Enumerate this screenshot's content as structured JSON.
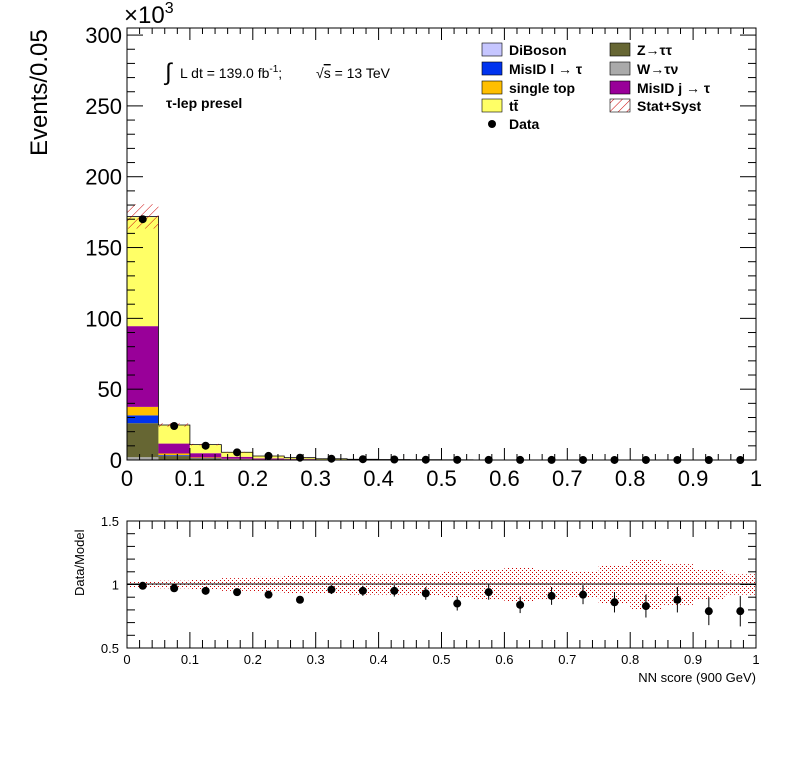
{
  "colors": {
    "DiBoson": "#c6c6ff",
    "MisID l to tau": "#0033ee",
    "single top": "#ffbf00",
    "ttbar": "#ffff66",
    "Z to tautau": "#666633",
    "W to taunu": "#aaaaaa",
    "MisID j to tau": "#990099",
    "data": "#000000",
    "band": "#cc0000"
  },
  "annotations": {
    "lumi_prefix": "L dt = 139.0 fb",
    "lumi_sup": "-1",
    "lumi_sep": ";  ",
    "sqrt_s": "s",
    "energy": " = 13 TeV",
    "region": "τ-lep presel"
  },
  "chart_data": [
    {
      "type": "bar",
      "stacked": true,
      "ylabel": "Events/0.05",
      "yscale_label": "×10",
      "yscale_exp": "3",
      "xlim": [
        0,
        1
      ],
      "ylim": [
        0,
        305
      ],
      "x_ticks": [
        "0",
        "0.1",
        "0.2",
        "0.3",
        "0.4",
        "0.5",
        "0.6",
        "0.7",
        "0.8",
        "0.9",
        "1"
      ],
      "y_ticks": [
        "0",
        "50",
        "100",
        "150",
        "200",
        "250",
        "300"
      ],
      "bin_edges": [
        0,
        0.05,
        0.1,
        0.15,
        0.2,
        0.25,
        0.3,
        0.35,
        0.4,
        0.45,
        0.5,
        0.55,
        0.6,
        0.65,
        0.7,
        0.75,
        0.8,
        0.85,
        0.9,
        0.95,
        1.0
      ],
      "legend_position": "top-right",
      "series": [
        {
          "name": "W→τν",
          "key": "W to taunu",
          "values": [
            2.0,
            0.3,
            0.15,
            0.08,
            0.05,
            0.03,
            0.02,
            0.01,
            0.01,
            0.005,
            0.004,
            0.003,
            0.002,
            0.002,
            0.001,
            0.001,
            0.001,
            0.001,
            0.0005,
            0.0005
          ]
        },
        {
          "name": "Z→ττ",
          "key": "Z to tautau",
          "values": [
            24.0,
            2.5,
            0.9,
            0.4,
            0.2,
            0.1,
            0.05,
            0.03,
            0.02,
            0.01,
            0.008,
            0.006,
            0.004,
            0.003,
            0.002,
            0.002,
            0.001,
            0.001,
            0.001,
            0.0005
          ]
        },
        {
          "name": "MisID l → τ",
          "key": "MisID l to tau",
          "values": [
            5.5,
            0.6,
            0.25,
            0.12,
            0.06,
            0.03,
            0.02,
            0.01,
            0.01,
            0.005,
            0.004,
            0.003,
            0.002,
            0.002,
            0.001,
            0.001,
            0.001,
            0.001,
            0.0005,
            0.0005
          ]
        },
        {
          "name": "single top",
          "key": "single top",
          "values": [
            6.0,
            1.2,
            0.5,
            0.25,
            0.12,
            0.07,
            0.04,
            0.02,
            0.015,
            0.01,
            0.008,
            0.006,
            0.004,
            0.003,
            0.002,
            0.002,
            0.001,
            0.001,
            0.001,
            0.0005
          ]
        },
        {
          "name": "MisID j → τ",
          "key": "MisID j to tau",
          "values": [
            57.0,
            7.0,
            3.0,
            1.4,
            0.7,
            0.4,
            0.2,
            0.12,
            0.08,
            0.05,
            0.03,
            0.02,
            0.015,
            0.01,
            0.008,
            0.006,
            0.004,
            0.003,
            0.002,
            0.001
          ]
        },
        {
          "name": "tt̄",
          "key": "ttbar",
          "values": [
            77.0,
            13.0,
            6.0,
            3.2,
            1.7,
            1.0,
            0.55,
            0.33,
            0.22,
            0.14,
            0.09,
            0.06,
            0.04,
            0.03,
            0.02,
            0.015,
            0.01,
            0.008,
            0.005,
            0.004
          ]
        },
        {
          "name": "DiBoson",
          "key": "DiBoson",
          "values": [
            0.5,
            0.1,
            0.05,
            0.02,
            0.01,
            0.01,
            0.005,
            0.003,
            0.002,
            0.001,
            0.001,
            0.001,
            0.0005,
            0.0005,
            0.0003,
            0.0003,
            0.0002,
            0.0002,
            0.0001,
            0.0001
          ]
        }
      ],
      "data": {
        "name": "Data",
        "values": [
          170.0,
          24.0,
          10.1,
          5.4,
          2.9,
          1.6,
          0.9,
          0.55,
          0.36,
          0.22,
          0.13,
          0.09,
          0.06,
          0.045,
          0.03,
          0.022,
          0.016,
          0.012,
          0.008,
          0.006
        ]
      },
      "uncertainty": {
        "name": "Stat+Syst",
        "relative": 0.05
      },
      "legend": [
        {
          "label": "DiBoson",
          "key": "DiBoson",
          "kind": "box"
        },
        {
          "label": "Z→ττ",
          "key": "Z to tautau",
          "kind": "box"
        },
        {
          "label": "MisID l → τ",
          "key": "MisID l to tau",
          "kind": "box"
        },
        {
          "label": "W→τν",
          "key": "W to taunu",
          "kind": "box"
        },
        {
          "label": "single top",
          "key": "single top",
          "kind": "box"
        },
        {
          "label": "MisID j → τ",
          "key": "MisID j to tau",
          "kind": "box"
        },
        {
          "label": "tt̄",
          "key": "ttbar",
          "kind": "box"
        },
        {
          "label": "Stat+Syst",
          "key": "band",
          "kind": "hatch"
        },
        {
          "label": "Data",
          "key": "data",
          "kind": "marker"
        }
      ]
    },
    {
      "type": "scatter",
      "ylabel": "Data/Model",
      "xlabel": "NN score (900 GeV)",
      "xlim": [
        0,
        1
      ],
      "ylim": [
        0.5,
        1.5
      ],
      "x_ticks": [
        "0",
        "0.1",
        "0.2",
        "0.3",
        "0.4",
        "0.5",
        "0.6",
        "0.7",
        "0.8",
        "0.9",
        "1"
      ],
      "y_ticks": [
        "0.5",
        "1",
        "1.5"
      ],
      "x": [
        0.025,
        0.075,
        0.125,
        0.175,
        0.225,
        0.275,
        0.325,
        0.375,
        0.425,
        0.475,
        0.525,
        0.575,
        0.625,
        0.675,
        0.725,
        0.775,
        0.825,
        0.875,
        0.925,
        0.975
      ],
      "ratio": [
        0.99,
        0.97,
        0.95,
        0.94,
        0.92,
        0.88,
        0.96,
        0.95,
        0.95,
        0.93,
        0.85,
        0.94,
        0.84,
        0.91,
        0.92,
        0.86,
        0.83,
        0.88,
        0.79,
        0.79
      ],
      "ratio_err": [
        0.005,
        0.01,
        0.015,
        0.018,
        0.022,
        0.028,
        0.035,
        0.04,
        0.045,
        0.05,
        0.055,
        0.06,
        0.065,
        0.07,
        0.075,
        0.08,
        0.09,
        0.1,
        0.11,
        0.12
      ],
      "band_half_width": [
        0.02,
        0.03,
        0.04,
        0.05,
        0.06,
        0.07,
        0.07,
        0.08,
        0.08,
        0.09,
        0.1,
        0.12,
        0.13,
        0.12,
        0.1,
        0.15,
        0.2,
        0.16,
        0.12,
        0.08
      ]
    }
  ]
}
